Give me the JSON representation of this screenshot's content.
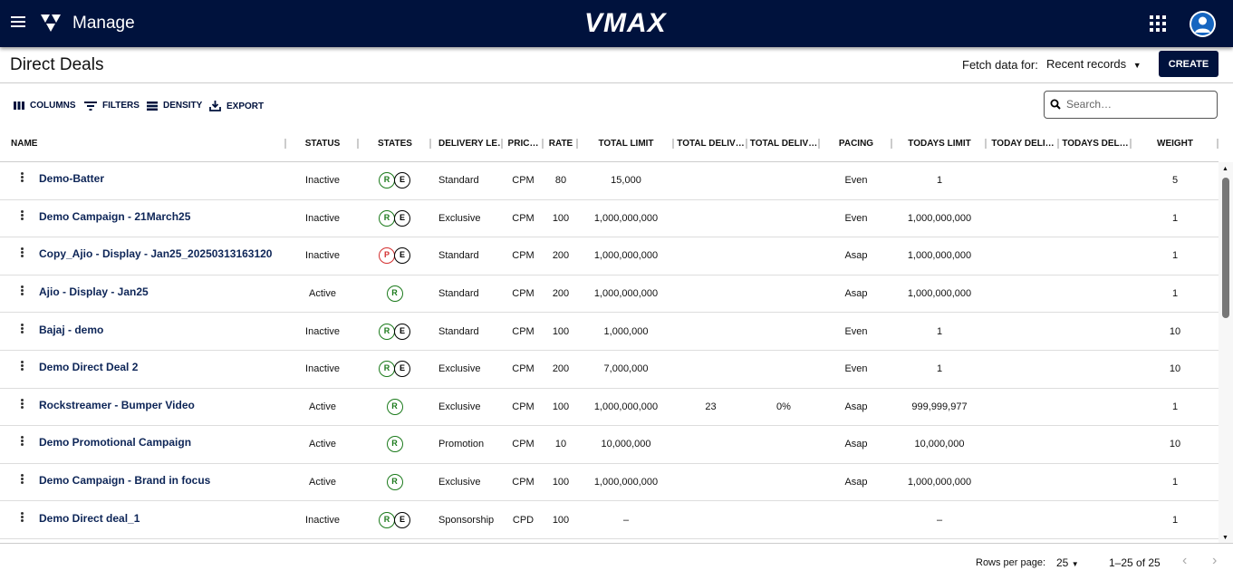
{
  "header": {
    "app_title": "Manage",
    "brand": "VMAX"
  },
  "page": {
    "title": "Direct Deals",
    "fetch_label": "Fetch data for:",
    "fetch_value": "Recent records",
    "create_label": "CREATE"
  },
  "toolbar": {
    "columns": "COLUMNS",
    "filters": "FILTERS",
    "density": "DENSITY",
    "export": "EXPORT",
    "search_placeholder": "Search…"
  },
  "columns": [
    "NAME",
    "STATUS",
    "STATES",
    "DELIVERY LE…",
    "PRIC…",
    "RATE",
    "TOTAL LIMIT",
    "TOTAL DELIV…",
    "TOTAL DELIV…",
    "PACING",
    "TODAYS LIMIT",
    "TODAY DELI…",
    "TODAYS DEL…",
    "WEIGHT"
  ],
  "colors": {
    "nav": "#00123d",
    "state_R": "#1b7a1b",
    "state_P": "#d32f2f",
    "state_E": "#000000"
  },
  "rows": [
    {
      "name": "Demo-Batter",
      "status": "Inactive",
      "states": [
        "R",
        "E"
      ],
      "delivery": "Standard",
      "pricing": "CPM",
      "rate": "80",
      "total_limit": "15,000",
      "total_delivered": "",
      "total_delivered_pct": "",
      "pacing": "Even",
      "todays_limit": "1",
      "today_delivered": "",
      "todays_delivered_pct": "",
      "weight": "5"
    },
    {
      "name": "Demo Campaign - 21March25",
      "status": "Inactive",
      "states": [
        "R",
        "E"
      ],
      "delivery": "Exclusive",
      "pricing": "CPM",
      "rate": "100",
      "total_limit": "1,000,000,000",
      "total_delivered": "",
      "total_delivered_pct": "",
      "pacing": "Even",
      "todays_limit": "1,000,000,000",
      "today_delivered": "",
      "todays_delivered_pct": "",
      "weight": "1"
    },
    {
      "name": "Copy_Ajio - Display - Jan25_20250313163120",
      "status": "Inactive",
      "states": [
        "P",
        "E"
      ],
      "delivery": "Standard",
      "pricing": "CPM",
      "rate": "200",
      "total_limit": "1,000,000,000",
      "total_delivered": "",
      "total_delivered_pct": "",
      "pacing": "Asap",
      "todays_limit": "1,000,000,000",
      "today_delivered": "",
      "todays_delivered_pct": "",
      "weight": "1"
    },
    {
      "name": "Ajio - Display - Jan25",
      "status": "Active",
      "states": [
        "R"
      ],
      "delivery": "Standard",
      "pricing": "CPM",
      "rate": "200",
      "total_limit": "1,000,000,000",
      "total_delivered": "",
      "total_delivered_pct": "",
      "pacing": "Asap",
      "todays_limit": "1,000,000,000",
      "today_delivered": "",
      "todays_delivered_pct": "",
      "weight": "1"
    },
    {
      "name": "Bajaj - demo",
      "status": "Inactive",
      "states": [
        "R",
        "E"
      ],
      "delivery": "Standard",
      "pricing": "CPM",
      "rate": "100",
      "total_limit": "1,000,000",
      "total_delivered": "",
      "total_delivered_pct": "",
      "pacing": "Even",
      "todays_limit": "1",
      "today_delivered": "",
      "todays_delivered_pct": "",
      "weight": "10"
    },
    {
      "name": "Demo Direct Deal 2",
      "status": "Inactive",
      "states": [
        "R",
        "E"
      ],
      "delivery": "Exclusive",
      "pricing": "CPM",
      "rate": "200",
      "total_limit": "7,000,000",
      "total_delivered": "",
      "total_delivered_pct": "",
      "pacing": "Even",
      "todays_limit": "1",
      "today_delivered": "",
      "todays_delivered_pct": "",
      "weight": "10"
    },
    {
      "name": "Rockstreamer - Bumper Video",
      "status": "Active",
      "states": [
        "R"
      ],
      "delivery": "Exclusive",
      "pricing": "CPM",
      "rate": "100",
      "total_limit": "1,000,000,000",
      "total_delivered": "23",
      "total_delivered_pct": "0%",
      "pacing": "Asap",
      "todays_limit": "999,999,977",
      "today_delivered": "",
      "todays_delivered_pct": "",
      "weight": "1"
    },
    {
      "name": "Demo Promotional Campaign",
      "status": "Active",
      "states": [
        "R"
      ],
      "delivery": "Promotion",
      "pricing": "CPM",
      "rate": "10",
      "total_limit": "10,000,000",
      "total_delivered": "",
      "total_delivered_pct": "",
      "pacing": "Asap",
      "todays_limit": "10,000,000",
      "today_delivered": "",
      "todays_delivered_pct": "",
      "weight": "10"
    },
    {
      "name": "Demo Campaign - Brand in focus",
      "status": "Active",
      "states": [
        "R"
      ],
      "delivery": "Exclusive",
      "pricing": "CPM",
      "rate": "100",
      "total_limit": "1,000,000,000",
      "total_delivered": "",
      "total_delivered_pct": "",
      "pacing": "Asap",
      "todays_limit": "1,000,000,000",
      "today_delivered": "",
      "todays_delivered_pct": "",
      "weight": "1"
    },
    {
      "name": "Demo Direct deal_1",
      "status": "Inactive",
      "states": [
        "R",
        "E"
      ],
      "delivery": "Sponsorship",
      "pricing": "CPD",
      "rate": "100",
      "total_limit": "–",
      "total_delivered": "",
      "total_delivered_pct": "",
      "pacing": "",
      "todays_limit": "–",
      "today_delivered": "",
      "todays_delivered_pct": "",
      "weight": "1"
    }
  ],
  "footer": {
    "rows_per_page_label": "Rows per page:",
    "rows_per_page": "25",
    "range": "1–25 of 25"
  }
}
